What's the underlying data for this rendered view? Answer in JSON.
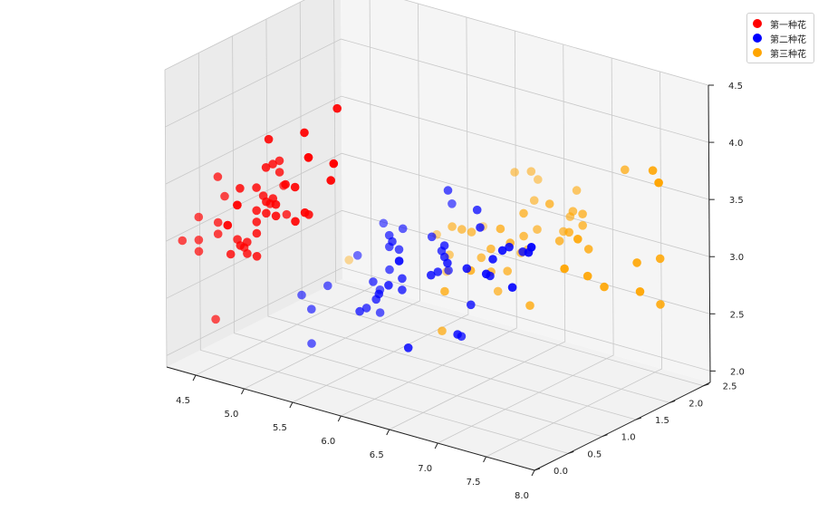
{
  "chart_data": {
    "type": "scatter",
    "title": "",
    "xlabel": "",
    "ylabel": "",
    "zlabel": "",
    "x_ticks": [
      "4.5",
      "5.0",
      "5.5",
      "6.0",
      "6.5",
      "7.0",
      "7.5",
      "8.0"
    ],
    "y_ticks": [
      "0.0",
      "0.5",
      "1.0",
      "1.5",
      "2.0",
      "2.5"
    ],
    "z_ticks": [
      "2.0",
      "2.5",
      "3.0",
      "3.5",
      "4.0",
      "4.5"
    ],
    "xlim": [
      4.2,
      8.0
    ],
    "ylim": [
      0.0,
      2.6
    ],
    "zlim": [
      1.9,
      4.5
    ],
    "grid": true,
    "legend_position": "top-right",
    "series": [
      {
        "name": "第一种花",
        "color": "#ff0000",
        "points": [
          [
            5.1,
            0.2,
            3.5
          ],
          [
            4.9,
            0.2,
            3.0
          ],
          [
            4.7,
            0.2,
            3.2
          ],
          [
            4.6,
            0.2,
            3.1
          ],
          [
            5.0,
            0.2,
            3.6
          ],
          [
            5.4,
            0.4,
            3.9
          ],
          [
            4.6,
            0.3,
            3.4
          ],
          [
            5.0,
            0.2,
            3.4
          ],
          [
            4.4,
            0.2,
            2.9
          ],
          [
            4.9,
            0.1,
            3.1
          ],
          [
            5.4,
            0.2,
            3.7
          ],
          [
            4.8,
            0.2,
            3.4
          ],
          [
            4.8,
            0.1,
            3.0
          ],
          [
            4.3,
            0.1,
            3.0
          ],
          [
            5.8,
            0.2,
            4.0
          ],
          [
            5.7,
            0.4,
            4.4
          ],
          [
            5.4,
            0.4,
            3.9
          ],
          [
            5.1,
            0.3,
            3.5
          ],
          [
            5.7,
            0.3,
            3.8
          ],
          [
            5.1,
            0.3,
            3.8
          ],
          [
            5.4,
            0.2,
            3.4
          ],
          [
            5.1,
            0.4,
            3.7
          ],
          [
            4.6,
            0.2,
            3.6
          ],
          [
            5.1,
            0.5,
            3.3
          ],
          [
            4.8,
            0.2,
            3.4
          ],
          [
            5.0,
            0.2,
            3.0
          ],
          [
            5.0,
            0.4,
            3.4
          ],
          [
            5.2,
            0.2,
            3.5
          ],
          [
            5.2,
            0.2,
            3.4
          ],
          [
            4.7,
            0.2,
            3.2
          ],
          [
            4.8,
            0.2,
            3.1
          ],
          [
            5.4,
            0.4,
            3.4
          ],
          [
            5.2,
            0.1,
            4.1
          ],
          [
            5.5,
            0.2,
            4.2
          ],
          [
            4.9,
            0.2,
            3.1
          ],
          [
            5.0,
            0.2,
            3.2
          ],
          [
            5.5,
            0.2,
            3.5
          ],
          [
            4.9,
            0.1,
            3.6
          ],
          [
            4.4,
            0.2,
            3.0
          ],
          [
            5.1,
            0.2,
            3.4
          ],
          [
            5.0,
            0.3,
            3.5
          ],
          [
            4.5,
            0.3,
            2.3
          ],
          [
            4.4,
            0.2,
            3.2
          ],
          [
            5.0,
            0.6,
            3.5
          ],
          [
            5.1,
            0.4,
            3.8
          ],
          [
            4.8,
            0.3,
            3.0
          ],
          [
            5.1,
            0.2,
            3.8
          ],
          [
            4.6,
            0.2,
            3.2
          ],
          [
            5.3,
            0.2,
            3.7
          ],
          [
            5.0,
            0.2,
            3.3
          ]
        ]
      },
      {
        "name": "第二种花",
        "color": "#0000ff",
        "points": [
          [
            7.0,
            1.4,
            3.2
          ],
          [
            6.4,
            1.5,
            3.2
          ],
          [
            6.9,
            1.5,
            3.1
          ],
          [
            5.5,
            1.3,
            2.3
          ],
          [
            6.5,
            1.5,
            2.8
          ],
          [
            5.7,
            1.3,
            2.8
          ],
          [
            6.3,
            1.6,
            3.3
          ],
          [
            4.9,
            1.0,
            2.4
          ],
          [
            6.6,
            1.3,
            2.9
          ],
          [
            5.2,
            1.4,
            2.7
          ],
          [
            5.0,
            1.0,
            2.0
          ],
          [
            5.9,
            1.5,
            3.0
          ],
          [
            6.0,
            1.0,
            2.2
          ],
          [
            6.1,
            1.4,
            2.9
          ],
          [
            5.6,
            1.3,
            2.9
          ],
          [
            6.7,
            1.4,
            3.1
          ],
          [
            5.6,
            1.5,
            3.0
          ],
          [
            5.8,
            1.0,
            2.7
          ],
          [
            6.2,
            1.5,
            2.2
          ],
          [
            5.6,
            1.1,
            2.5
          ],
          [
            5.9,
            1.8,
            3.2
          ],
          [
            6.1,
            1.3,
            2.8
          ],
          [
            6.3,
            1.5,
            2.5
          ],
          [
            6.1,
            1.2,
            2.8
          ],
          [
            6.4,
            1.3,
            2.9
          ],
          [
            6.6,
            1.4,
            3.0
          ],
          [
            6.8,
            1.4,
            2.8
          ],
          [
            6.7,
            1.7,
            3.0
          ],
          [
            6.0,
            1.5,
            2.9
          ],
          [
            5.7,
            1.0,
            2.6
          ],
          [
            5.5,
            1.1,
            2.4
          ],
          [
            5.5,
            1.0,
            2.4
          ],
          [
            5.8,
            1.2,
            2.7
          ],
          [
            6.0,
            1.6,
            2.7
          ],
          [
            5.4,
            1.5,
            3.0
          ],
          [
            6.0,
            1.6,
            3.4
          ],
          [
            6.7,
            1.5,
            3.1
          ],
          [
            6.3,
            1.3,
            2.3
          ],
          [
            5.6,
            1.3,
            3.0
          ],
          [
            5.5,
            1.3,
            2.5
          ],
          [
            5.5,
            1.2,
            2.6
          ],
          [
            6.1,
            1.4,
            3.0
          ],
          [
            5.8,
            1.2,
            2.6
          ],
          [
            5.0,
            1.0,
            2.3
          ],
          [
            5.6,
            1.3,
            2.7
          ],
          [
            5.7,
            1.2,
            3.0
          ],
          [
            5.7,
            1.3,
            2.9
          ],
          [
            6.2,
            1.3,
            2.9
          ],
          [
            5.1,
            1.1,
            2.5
          ],
          [
            5.7,
            1.3,
            2.8
          ]
        ]
      },
      {
        "name": "第三种花",
        "color": "#ffa500",
        "points": [
          [
            6.3,
            2.5,
            3.3
          ],
          [
            5.8,
            1.9,
            2.7
          ],
          [
            7.1,
            2.1,
            3.0
          ],
          [
            6.3,
            1.8,
            2.9
          ],
          [
            6.5,
            2.2,
            3.0
          ],
          [
            7.6,
            2.1,
            3.0
          ],
          [
            4.9,
            1.7,
            2.5
          ],
          [
            7.3,
            1.8,
            2.9
          ],
          [
            6.7,
            1.8,
            2.5
          ],
          [
            7.2,
            2.5,
            3.6
          ],
          [
            6.5,
            2.0,
            3.2
          ],
          [
            6.4,
            1.9,
            2.7
          ],
          [
            6.8,
            2.1,
            3.0
          ],
          [
            5.7,
            2.0,
            2.5
          ],
          [
            5.8,
            2.4,
            2.8
          ],
          [
            6.4,
            2.3,
            3.2
          ],
          [
            6.5,
            1.8,
            3.0
          ],
          [
            7.7,
            2.2,
            3.8
          ],
          [
            7.7,
            2.3,
            2.6
          ],
          [
            6.0,
            1.5,
            2.2
          ],
          [
            6.9,
            2.3,
            3.2
          ],
          [
            5.6,
            2.0,
            2.8
          ],
          [
            7.7,
            2.0,
            2.8
          ],
          [
            6.3,
            1.8,
            2.7
          ],
          [
            6.7,
            2.1,
            3.3
          ],
          [
            7.2,
            1.8,
            3.2
          ],
          [
            6.2,
            1.8,
            2.8
          ],
          [
            6.1,
            1.8,
            3.0
          ],
          [
            6.4,
            2.1,
            2.8
          ],
          [
            7.2,
            1.6,
            3.0
          ],
          [
            7.4,
            1.9,
            2.8
          ],
          [
            7.9,
            2.0,
            3.8
          ],
          [
            6.4,
            2.2,
            2.8
          ],
          [
            6.3,
            1.5,
            2.8
          ],
          [
            6.1,
            1.4,
            2.6
          ],
          [
            7.7,
            2.3,
            3.0
          ],
          [
            6.3,
            2.4,
            3.4
          ],
          [
            6.4,
            1.8,
            3.1
          ],
          [
            6.0,
            1.8,
            3.0
          ],
          [
            6.9,
            2.1,
            3.1
          ],
          [
            6.7,
            2.4,
            3.1
          ],
          [
            6.9,
            2.3,
            3.1
          ],
          [
            6.8,
            2.3,
            3.2
          ],
          [
            6.7,
            2.5,
            3.3
          ],
          [
            6.7,
            2.3,
            3.0
          ],
          [
            6.3,
            1.9,
            2.5
          ],
          [
            6.5,
            2.0,
            3.0
          ],
          [
            6.2,
            2.3,
            3.4
          ],
          [
            5.9,
            1.8,
            3.0
          ]
        ]
      }
    ]
  }
}
